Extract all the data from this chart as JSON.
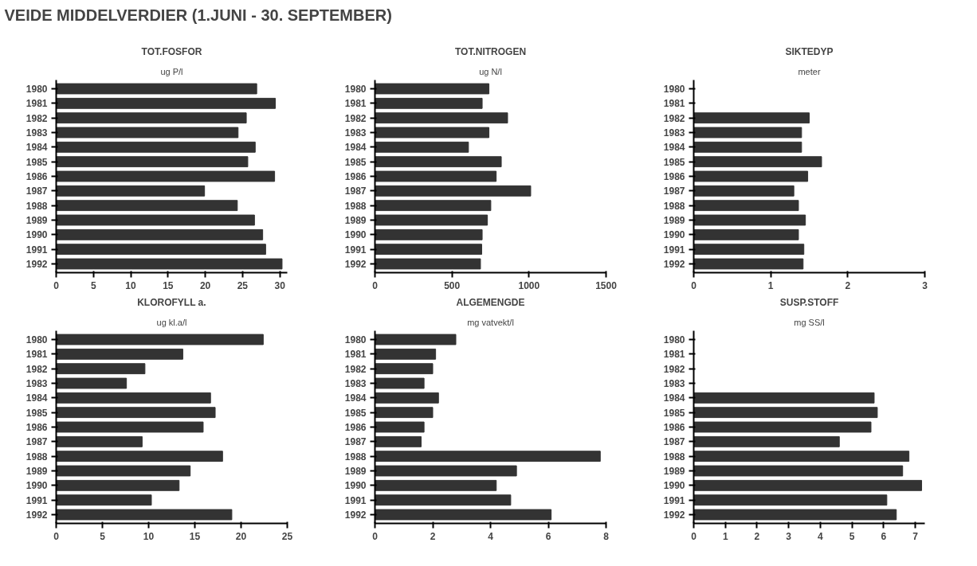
{
  "chart_data": [
    {
      "type": "other",
      "title": "VEIDE MIDDELVERDIER (1.JUNI - 30. SEPTEMBER)"
    },
    {
      "type": "bar",
      "orientation": "horizontal",
      "title": "TOT.FOSFOR",
      "subtitle": "ug P/l",
      "color": "#333333",
      "grid": false,
      "categories": [
        "1980",
        "1981",
        "1982",
        "1983",
        "1984",
        "1985",
        "1986",
        "1987",
        "1988",
        "1989",
        "1990",
        "1991",
        "1992"
      ],
      "values": [
        26.9,
        29.4,
        25.5,
        24.4,
        26.7,
        25.7,
        29.3,
        19.9,
        24.3,
        26.6,
        27.7,
        28.1,
        30.3
      ],
      "xlim": [
        0,
        31
      ],
      "xticks": [
        0,
        5,
        10,
        15,
        20,
        25,
        30
      ]
    },
    {
      "type": "bar",
      "orientation": "horizontal",
      "title": "TOT.NITROGEN",
      "subtitle": "ug N/l",
      "color": "#333333",
      "grid": false,
      "categories": [
        "1980",
        "1981",
        "1982",
        "1983",
        "1984",
        "1985",
        "1986",
        "1987",
        "1988",
        "1989",
        "1990",
        "1991",
        "1992"
      ],
      "values": [
        740,
        696,
        861,
        740,
        607,
        820,
        787,
        1011,
        752,
        730,
        696,
        693,
        685
      ],
      "xlim": [
        0,
        1500
      ],
      "xticks": [
        0,
        500,
        1000,
        1500
      ]
    },
    {
      "type": "bar",
      "orientation": "horizontal",
      "title": "SIKTEDYP",
      "subtitle": "meter",
      "color": "#333333",
      "grid": false,
      "categories": [
        "1980",
        "1981",
        "1982",
        "1983",
        "1984",
        "1985",
        "1986",
        "1987",
        "1988",
        "1989",
        "1990",
        "1991",
        "1992"
      ],
      "values": [
        null,
        null,
        1.5,
        1.4,
        1.4,
        1.66,
        1.48,
        1.3,
        1.36,
        1.45,
        1.36,
        1.43,
        1.42
      ],
      "xlim": [
        0,
        3
      ],
      "xticks": [
        0,
        1,
        2,
        3
      ]
    },
    {
      "type": "bar",
      "orientation": "horizontal",
      "title": "KLOROFYLL a.",
      "subtitle": "ug kl.a/l",
      "color": "#333333",
      "grid": false,
      "categories": [
        "1980",
        "1981",
        "1982",
        "1983",
        "1984",
        "1985",
        "1986",
        "1987",
        "1988",
        "1989",
        "1990",
        "1991",
        "1992"
      ],
      "values": [
        22.4,
        13.7,
        9.6,
        7.6,
        16.7,
        17.2,
        15.9,
        9.3,
        18.0,
        14.5,
        13.3,
        10.3,
        19.0
      ],
      "xlim": [
        0,
        25
      ],
      "xticks": [
        0,
        5,
        10,
        15,
        20,
        25
      ]
    },
    {
      "type": "bar",
      "orientation": "horizontal",
      "title": "ALGEMENGDE",
      "subtitle": "mg vatvekt/l",
      "color": "#333333",
      "grid": false,
      "categories": [
        "1980",
        "1981",
        "1982",
        "1983",
        "1984",
        "1985",
        "1986",
        "1987",
        "1988",
        "1989",
        "1990",
        "1991",
        "1992"
      ],
      "values": [
        2.8,
        2.1,
        2.0,
        1.7,
        2.2,
        2.0,
        1.7,
        1.6,
        7.8,
        4.9,
        4.2,
        4.7,
        6.1
      ],
      "xlim": [
        0,
        8
      ],
      "xticks": [
        0,
        2,
        4,
        6,
        8
      ]
    },
    {
      "type": "bar",
      "orientation": "horizontal",
      "title": "SUSP.STOFF",
      "subtitle": "mg SS/l",
      "color": "#333333",
      "grid": false,
      "categories": [
        "1980",
        "1981",
        "1982",
        "1983",
        "1984",
        "1985",
        "1986",
        "1987",
        "1988",
        "1989",
        "1990",
        "1991",
        "1992"
      ],
      "values": [
        null,
        null,
        null,
        null,
        5.7,
        5.8,
        5.6,
        4.6,
        6.8,
        6.6,
        7.2,
        6.1,
        6.4
      ],
      "xlim": [
        0,
        7.3
      ],
      "xticks": [
        0,
        1,
        2,
        3,
        4,
        5,
        6,
        7
      ]
    }
  ]
}
